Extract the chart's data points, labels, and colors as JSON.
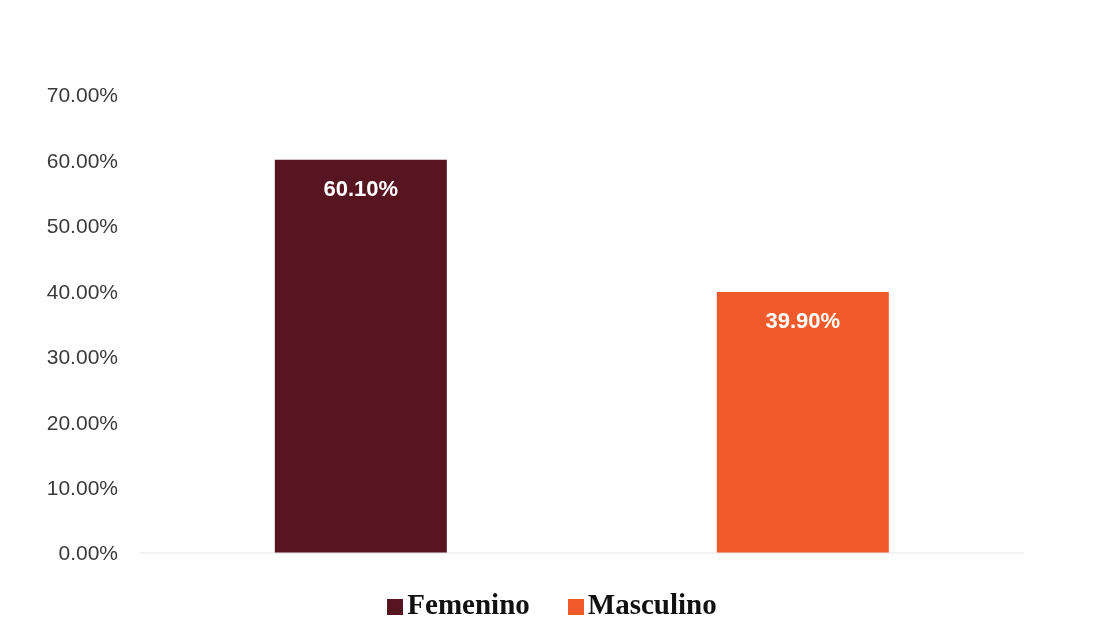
{
  "chart_data": {
    "type": "bar",
    "categories": [
      null,
      null
    ],
    "series": [
      {
        "name": "Femenino",
        "color": "#561520",
        "values": [
          60.1,
          null
        ],
        "value_labels": [
          "60.10%",
          null
        ]
      },
      {
        "name": "Masculino",
        "color": "#f15a2a",
        "values": [
          null,
          39.9
        ],
        "value_labels": [
          null,
          "39.90%"
        ]
      }
    ],
    "ylim": [
      0,
      70
    ],
    "yticks": [
      {
        "value": 0,
        "label": "0.00%"
      },
      {
        "value": 10,
        "label": "10.00%"
      },
      {
        "value": 20,
        "label": "20.00%"
      },
      {
        "value": 30,
        "label": "30.00%"
      },
      {
        "value": 40,
        "label": "40.00%"
      },
      {
        "value": 50,
        "label": "50.00%"
      },
      {
        "value": 60,
        "label": "60.00%"
      },
      {
        "value": 70,
        "label": "70.00%"
      }
    ],
    "grid": false,
    "legend": "bottom",
    "tick_labels": "y"
  }
}
